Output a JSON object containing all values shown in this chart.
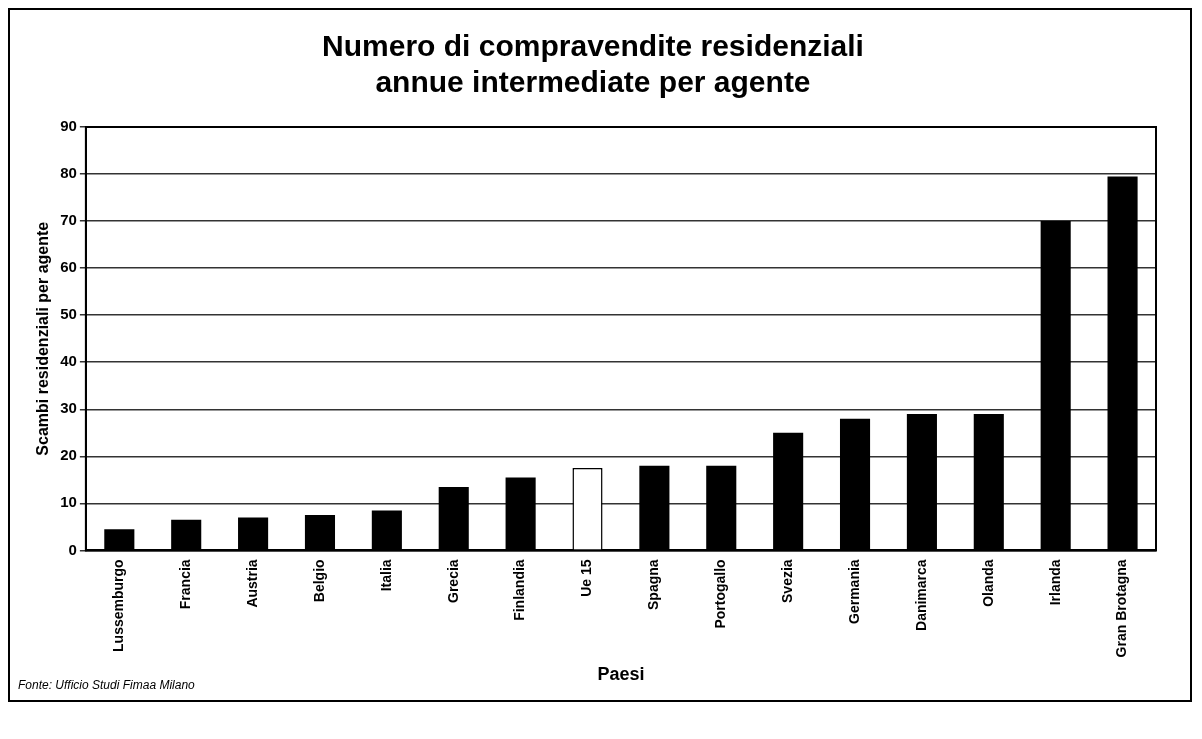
{
  "chart_data": {
    "type": "bar",
    "title": [
      "Numero di compravendite residenziali",
      "annue intermediate per agente"
    ],
    "xlabel": "Paesi",
    "ylabel": "Scambi residenziali per agente",
    "categories": [
      "Lussemburgo",
      "Francia",
      "Austria",
      "Belgio",
      "Italia",
      "Grecia",
      "Finlandia",
      "Ue 15",
      "Spagna",
      "Portogallo",
      "Svezia",
      "Germania",
      "Danimarca",
      "Olanda",
      "Irlanda",
      "Gran Brotagna"
    ],
    "values": [
      4.5,
      6.5,
      7,
      7.5,
      8.5,
      13.5,
      15.5,
      17.5,
      18,
      18,
      25,
      28,
      29,
      29,
      70,
      79.5
    ],
    "colors": [
      "#000000",
      "#000000",
      "#000000",
      "#000000",
      "#000000",
      "#000000",
      "#000000",
      "#ffffff",
      "#000000",
      "#000000",
      "#000000",
      "#000000",
      "#000000",
      "#000000",
      "#000000",
      "#000000"
    ],
    "ylim": [
      0,
      90
    ],
    "yticks": [
      0,
      10,
      20,
      30,
      40,
      50,
      60,
      70,
      80,
      90
    ],
    "grid": "y",
    "legend": false,
    "annotations": [
      "Fonte: Ufficio Studi Fimaa Milano"
    ]
  }
}
